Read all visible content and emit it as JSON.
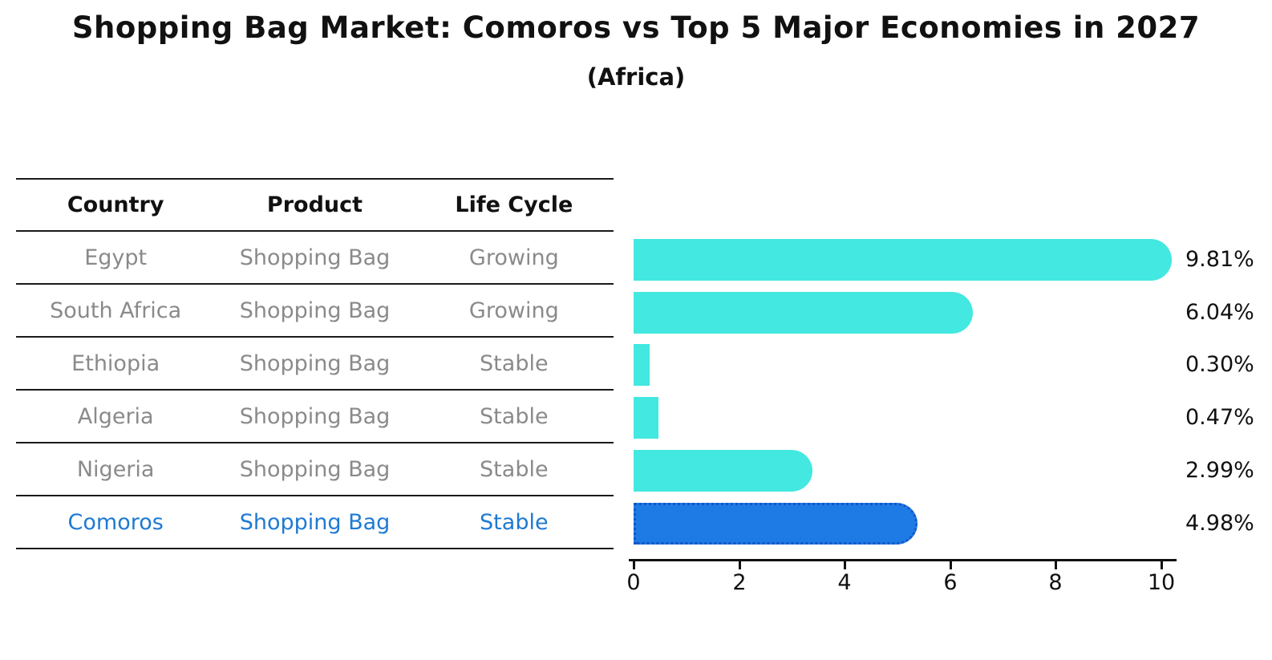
{
  "title": "Shopping Bag Market: Comoros vs Top 5 Major Economies in 2027",
  "subtitle": "(Africa)",
  "table": {
    "headers": [
      "Country",
      "Product",
      "Life Cycle"
    ],
    "rows": [
      {
        "cells": [
          "Egypt",
          "Shopping Bag",
          "Growing"
        ],
        "highlight": false
      },
      {
        "cells": [
          "South Africa",
          "Shopping Bag",
          "Growing"
        ],
        "highlight": false
      },
      {
        "cells": [
          "Ethiopia",
          "Shopping Bag",
          "Stable"
        ],
        "highlight": false
      },
      {
        "cells": [
          "Algeria",
          "Shopping Bag",
          "Stable"
        ],
        "highlight": false
      },
      {
        "cells": [
          "Nigeria",
          "Shopping Bag",
          "Stable"
        ],
        "highlight": false
      },
      {
        "cells": [
          "Comoros",
          "Shopping Bag",
          "Stable"
        ],
        "highlight": true
      }
    ]
  },
  "chart_data": {
    "type": "bar",
    "orientation": "horizontal",
    "categories": [
      "Egypt",
      "South Africa",
      "Ethiopia",
      "Algeria",
      "Nigeria",
      "Comoros"
    ],
    "values": [
      9.81,
      6.04,
      0.3,
      0.47,
      2.99,
      4.98
    ],
    "value_labels": [
      "9.81%",
      "6.04%",
      "0.30%",
      "0.47%",
      "2.99%",
      "4.98%"
    ],
    "xticks": [
      "0",
      "2",
      "4",
      "6",
      "8",
      "10"
    ],
    "xlim": [
      0,
      10.3
    ],
    "grid": false,
    "legend": "none",
    "highlight_index": 5,
    "bar_color": "#43E8E0",
    "highlight_bar_color": "#1E7BE5",
    "highlight_border_color": "#1456C8",
    "highlight_text_color": "#1E7AD2"
  }
}
